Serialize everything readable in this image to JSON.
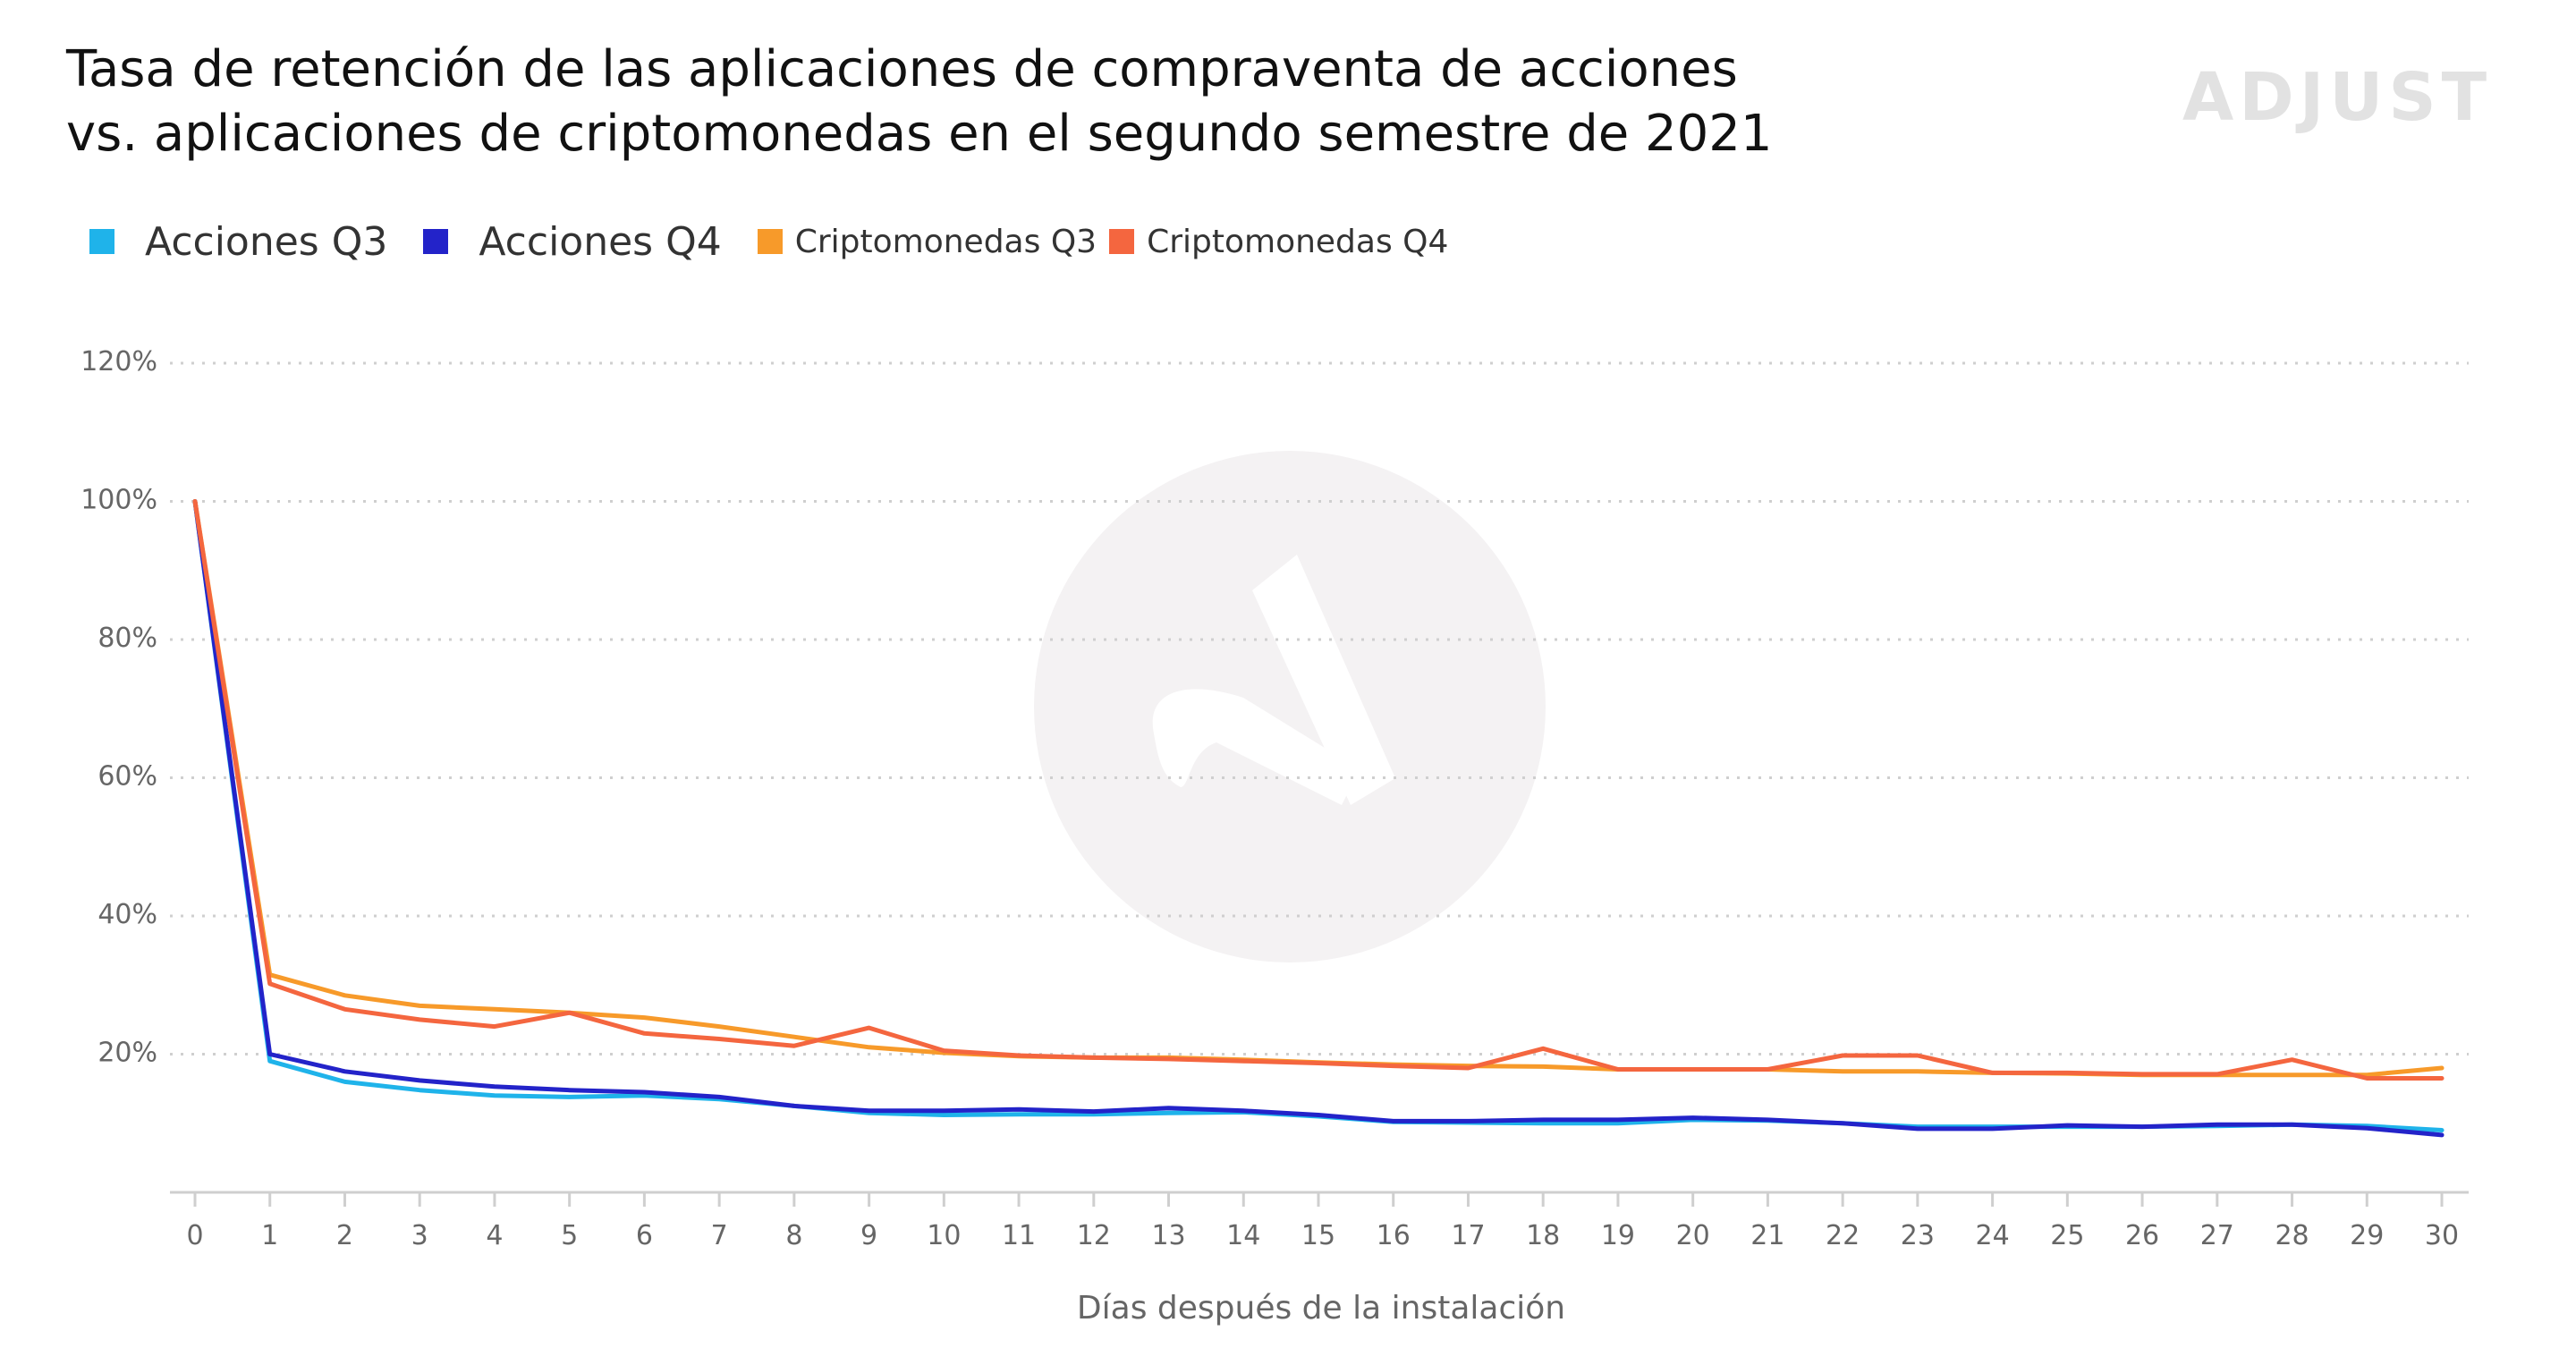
{
  "title_line1": "Tasa de retención de las aplicaciones de compraventa de acciones",
  "title_line2": "vs. aplicaciones de criptomonedas en el segundo semestre de 2021",
  "logo_text": "ADJUST",
  "colors": {
    "acciones_q3": "#1fb3ea",
    "acciones_q4": "#2323c9",
    "cripto_q3": "#f79a2a",
    "cripto_q4": "#f4663f",
    "grid": "#cfcfcf",
    "watermark": "#f2f2f2"
  },
  "chart_data": {
    "type": "line",
    "xlabel": "Días después de la instalación",
    "ylabel": "",
    "ylim": [
      0,
      120
    ],
    "yticks": [
      20,
      40,
      60,
      80,
      100,
      120
    ],
    "ytick_labels": [
      "20%",
      "40%",
      "60%",
      "80%",
      "100%",
      "120%"
    ],
    "x": [
      0,
      1,
      2,
      3,
      4,
      5,
      6,
      7,
      8,
      9,
      10,
      11,
      12,
      13,
      14,
      15,
      16,
      17,
      18,
      19,
      20,
      21,
      22,
      23,
      24,
      25,
      26,
      27,
      28,
      29,
      30
    ],
    "grid": "horizontal dotted",
    "legend_position": "top-left",
    "series": [
      {
        "name": "Acciones Q3",
        "color_key": "acciones_q3",
        "values": [
          100,
          19,
          16,
          14.8,
          14,
          13.8,
          14,
          13.5,
          12.5,
          11.5,
          11.2,
          11.3,
          11.3,
          11.5,
          11.6,
          11,
          10.2,
          10.1,
          10,
          10,
          10.5,
          10.4,
          10,
          9.5,
          9.5,
          9.5,
          9.5,
          9.6,
          9.8,
          9.6,
          9
        ]
      },
      {
        "name": "Acciones Q4",
        "color_key": "acciones_q4",
        "values": [
          100,
          20,
          17.5,
          16.2,
          15.3,
          14.8,
          14.5,
          13.8,
          12.5,
          11.8,
          11.8,
          12,
          11.7,
          12.2,
          11.8,
          11.2,
          10.3,
          10.3,
          10.5,
          10.5,
          10.8,
          10.5,
          10,
          9.2,
          9.2,
          9.7,
          9.5,
          9.8,
          9.8,
          9.3,
          8.3
        ]
      },
      {
        "name": "Criptomonedas Q3",
        "color_key": "cripto_q3",
        "values": [
          100,
          31.5,
          28.5,
          27,
          26.5,
          26,
          25.3,
          24,
          22.5,
          21,
          20.2,
          19.7,
          19.5,
          19.5,
          19.2,
          18.8,
          18.5,
          18.3,
          18.2,
          17.8,
          17.8,
          17.8,
          17.5,
          17.5,
          17.3,
          17.2,
          17,
          17,
          17,
          17,
          18
        ]
      },
      {
        "name": "Criptomonedas Q4",
        "color_key": "cripto_q4",
        "values": [
          100,
          30.2,
          26.5,
          25,
          24,
          26,
          23,
          22.2,
          21.2,
          23.8,
          20.5,
          19.8,
          19.5,
          19.3,
          19,
          18.7,
          18.3,
          18,
          20.8,
          17.8,
          17.8,
          17.8,
          19.8,
          19.8,
          17.3,
          17.3,
          17.1,
          17.1,
          19.2,
          16.5,
          16.5
        ]
      }
    ]
  }
}
